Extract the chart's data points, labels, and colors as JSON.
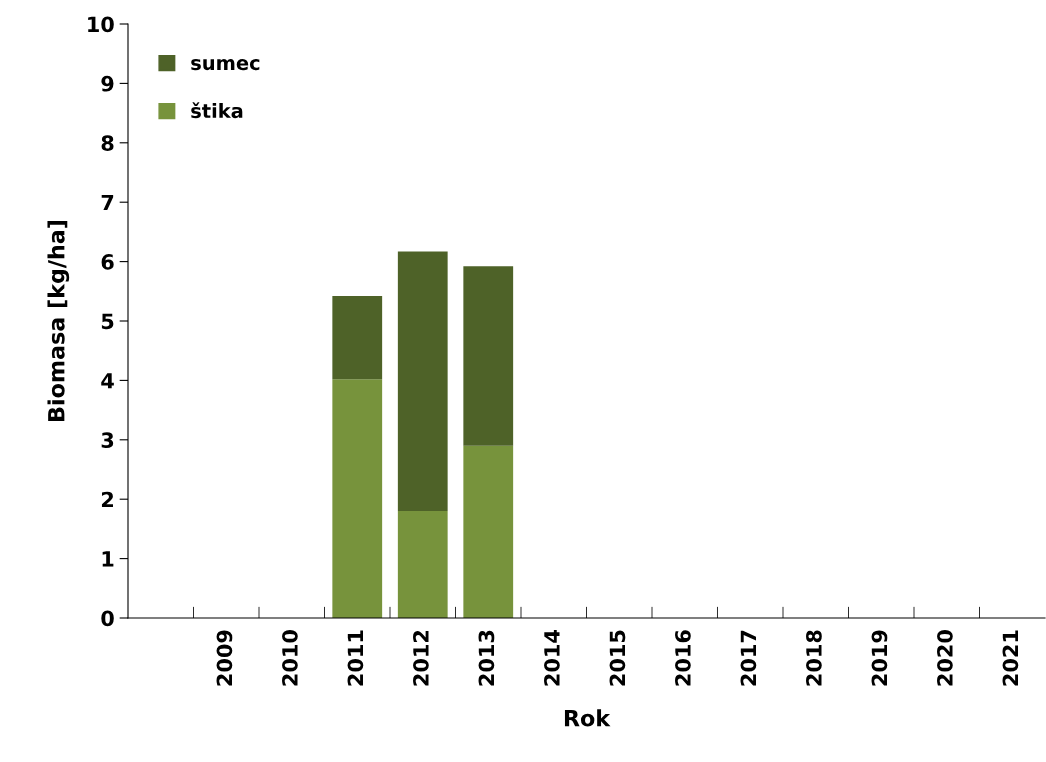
{
  "chart_data": {
    "type": "bar",
    "stacked": true,
    "xlabel": "Rok",
    "ylabel": "Biomasa [kg/ha]",
    "categories": [
      null,
      "2009",
      "2010",
      "2011",
      "2012",
      "2013",
      "2014",
      "2015",
      "2016",
      "2017",
      "2018",
      "2019",
      "2020",
      "2021"
    ],
    "series": [
      {
        "name": "štika",
        "color": "#77933c",
        "values": [
          null,
          null,
          null,
          4.02,
          1.8,
          2.9,
          null,
          null,
          null,
          null,
          null,
          null,
          null,
          null
        ]
      },
      {
        "name": "sumec",
        "color": "#4e6228",
        "values": [
          null,
          null,
          null,
          1.4,
          4.37,
          3.02,
          null,
          null,
          null,
          null,
          null,
          null,
          null,
          null
        ]
      }
    ],
    "ylim": [
      0,
      10
    ],
    "yticks": [
      0,
      1,
      2,
      3,
      4,
      5,
      6,
      7,
      8,
      9,
      10
    ],
    "grid": false,
    "legend": "top left"
  }
}
